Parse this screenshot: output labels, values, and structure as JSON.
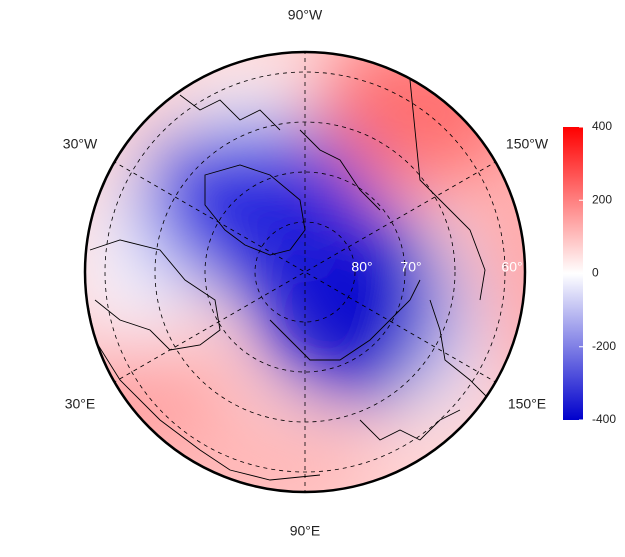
{
  "map": {
    "longitude_labels": [
      "90°W",
      "30°W",
      "150°W",
      "30°E",
      "150°E",
      "90°E"
    ],
    "latitude_labels": [
      "80°",
      "70°",
      "60°"
    ],
    "colorbar": {
      "ylim": [
        -400,
        400
      ],
      "yticks": [
        -400,
        -200,
        0,
        200,
        400
      ],
      "colors": [
        "#0000cc",
        "#ffffff",
        "#ff0000"
      ]
    }
  }
}
